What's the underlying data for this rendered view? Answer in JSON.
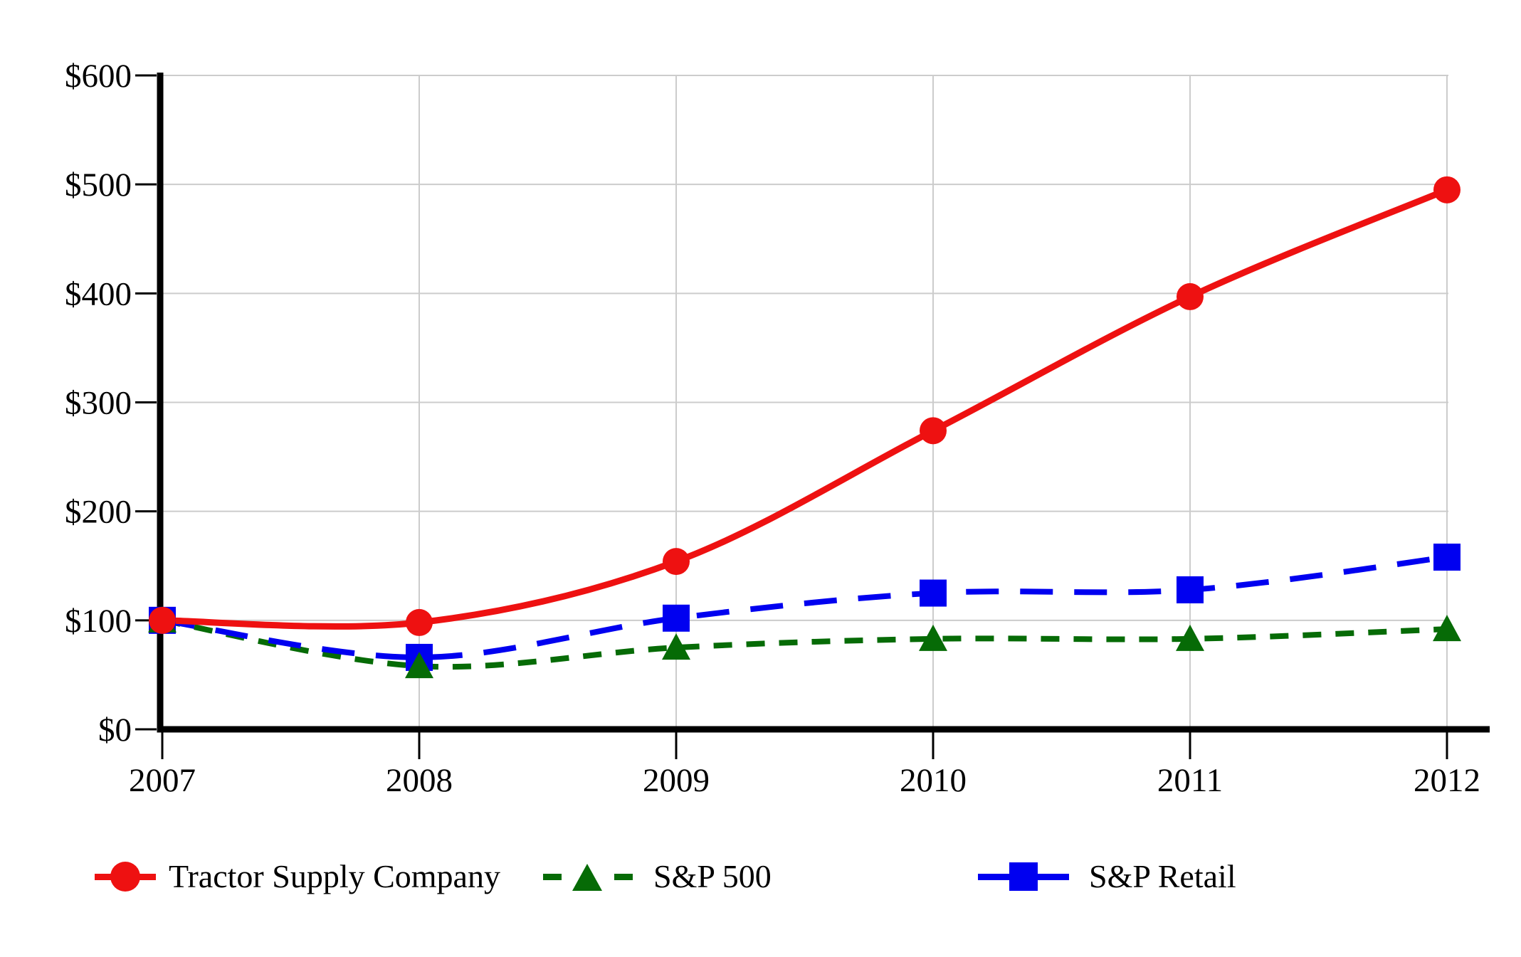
{
  "chart_data": {
    "type": "line",
    "title": "",
    "x": [
      "2007",
      "2008",
      "2009",
      "2010",
      "2011",
      "2012"
    ],
    "series": [
      {
        "name": "Tractor Supply Company",
        "color": "#ee1111",
        "marker": "circle",
        "dash": "solid",
        "values": [
          100,
          98,
          154,
          274,
          397,
          495
        ]
      },
      {
        "name": "S&P 500",
        "color": "#066b06",
        "marker": "triangle",
        "dash": "short-dash",
        "values": [
          100,
          58,
          75,
          83,
          83,
          92
        ]
      },
      {
        "name": "S&P Retail",
        "color": "#0000f0",
        "marker": "square",
        "dash": "long-dash",
        "values": [
          100,
          66,
          102,
          125,
          128,
          158
        ]
      }
    ],
    "y_ticks": [
      "$0",
      "$100",
      "$200",
      "$300",
      "$400",
      "$500",
      "$600"
    ],
    "ylim": [
      0,
      600
    ],
    "grid": true,
    "gridline_color": "#cccccc",
    "axis_color": "#000000",
    "legend_position": "bottom"
  }
}
